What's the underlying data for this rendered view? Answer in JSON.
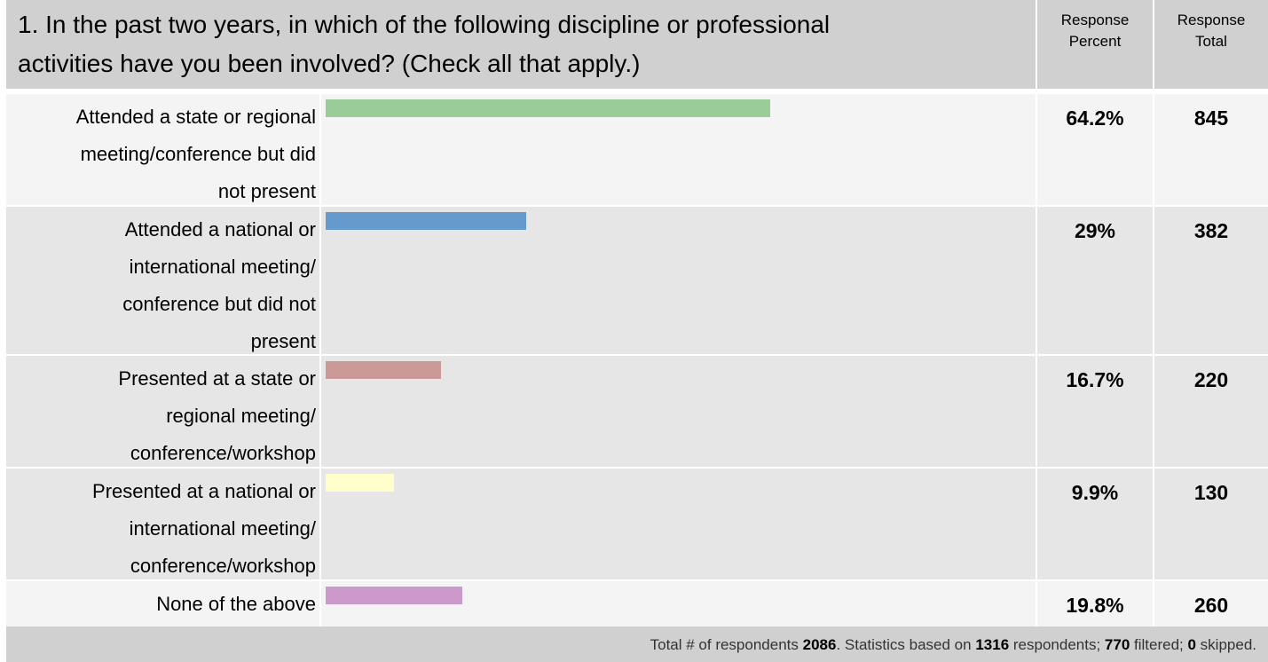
{
  "question": {
    "line1": "1. In the past two years, in which of the following discipline or professional",
    "line2": "activities have you been involved? (Check all that apply.)"
  },
  "headers": {
    "percent_line1": "Response",
    "percent_line2": "Percent",
    "total_line1": "Response",
    "total_line2": "Total"
  },
  "chart_data": {
    "type": "bar",
    "orientation": "horizontal",
    "categories": [
      "Attended a state or regional meeting/conference but did not present",
      "Attended a national or international meeting/conference but did not present",
      "Presented at a state or regional meeting/conference/workshop",
      "Presented at a national or international meeting/conference/workshop",
      "None of the above"
    ],
    "values": [
      64.2,
      29,
      16.7,
      9.9,
      19.8
    ],
    "percent_labels": [
      "64.2%",
      "29%",
      "16.7%",
      "9.9%",
      "19.8%"
    ],
    "totals": [
      "845",
      "382",
      "220",
      "130",
      "260"
    ],
    "colors": [
      "#99cc99",
      "#6699cc",
      "#cc9999",
      "#ffffcc",
      "#cc99cc"
    ],
    "xlim": [
      0,
      100
    ]
  },
  "rows": [
    {
      "label_lines": [
        "Attended a state or regional",
        "meeting/conference but did",
        "not present"
      ]
    },
    {
      "label_lines": [
        "Attended a national or",
        "international meeting/",
        "conference but did not",
        "present"
      ]
    },
    {
      "label_lines": [
        "Presented at a state or",
        "regional meeting/",
        "conference/workshop"
      ]
    },
    {
      "label_lines": [
        "Presented at a national or",
        "international meeting/",
        "conference/workshop"
      ]
    },
    {
      "label_lines": [
        "None of the above"
      ]
    }
  ],
  "footer": {
    "t1": "Total # of respondents ",
    "n1": "2086",
    "t2": ". Statistics based on ",
    "n2": "1316",
    "t3": " respondents; ",
    "n3": "770",
    "t4": " filtered; ",
    "n4": "0",
    "t5": " skipped."
  }
}
